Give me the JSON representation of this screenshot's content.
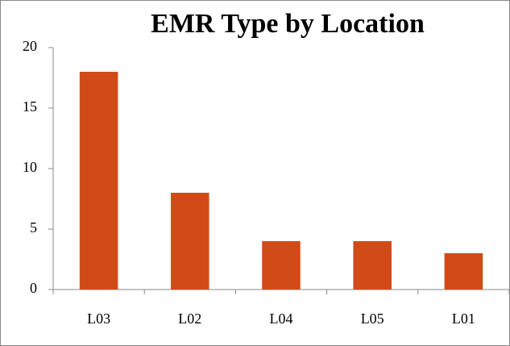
{
  "chart_data": {
    "type": "bar",
    "title": "EMR Type by Location",
    "categories": [
      "L03",
      "L02",
      "L04",
      "L05",
      "L01"
    ],
    "values": [
      18,
      8,
      4,
      4,
      3
    ],
    "color": "#d14b19",
    "ylim": [
      0,
      20
    ],
    "yticks": [
      0,
      5,
      10,
      15,
      20
    ],
    "grid": false
  }
}
